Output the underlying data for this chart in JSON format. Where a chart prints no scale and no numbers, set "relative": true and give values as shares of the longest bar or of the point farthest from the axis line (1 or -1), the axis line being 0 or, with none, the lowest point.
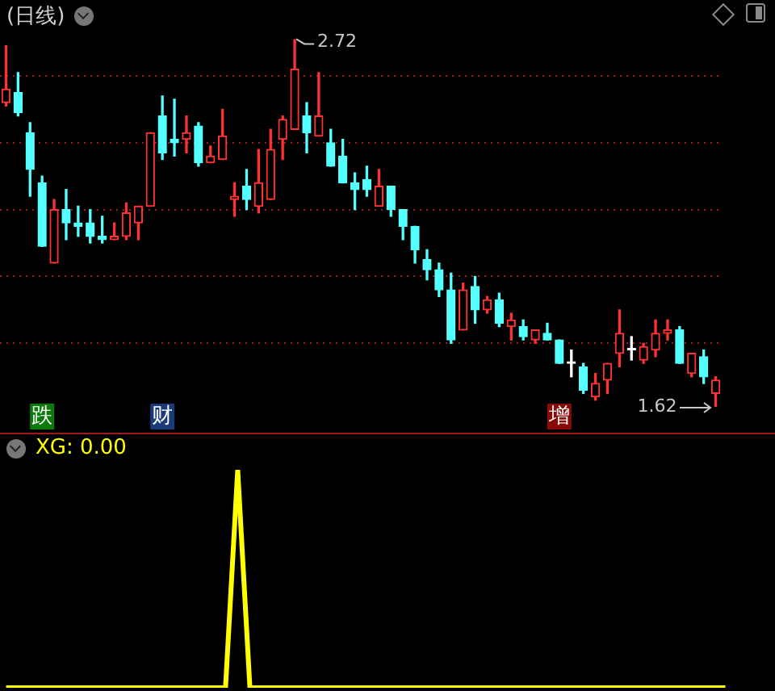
{
  "chart_data": [
    {
      "type": "candlestick",
      "title": "(日线)",
      "categories": [
        null,
        null,
        null,
        null,
        null,
        null,
        null,
        null,
        null,
        null,
        null,
        null,
        null,
        null,
        null,
        null,
        null,
        null,
        null,
        null,
        null,
        null,
        null,
        null,
        null,
        null,
        null,
        null,
        null,
        null,
        null,
        null,
        null,
        null,
        null,
        null,
        null,
        null,
        null,
        null,
        null,
        null,
        null,
        null,
        null,
        null,
        null,
        null,
        null,
        null,
        null,
        null,
        null,
        null,
        null,
        null,
        null,
        null,
        null,
        null
      ],
      "ohlc": [
        [
          2.53,
          2.7,
          2.52,
          2.57
        ],
        [
          2.56,
          2.62,
          2.49,
          2.5
        ],
        [
          2.44,
          2.47,
          2.25,
          2.33
        ],
        [
          2.29,
          2.31,
          2.1,
          2.1
        ],
        [
          2.05,
          2.24,
          2.05,
          2.21
        ],
        [
          2.21,
          2.27,
          2.12,
          2.17
        ],
        [
          2.17,
          2.22,
          2.13,
          2.16
        ],
        [
          2.17,
          2.21,
          2.11,
          2.13
        ],
        [
          2.13,
          2.19,
          2.11,
          2.12
        ],
        [
          2.12,
          2.17,
          2.12,
          2.13
        ],
        [
          2.13,
          2.23,
          2.12,
          2.2
        ],
        [
          2.17,
          2.22,
          2.12,
          2.22
        ],
        [
          2.22,
          2.44,
          2.22,
          2.44
        ],
        [
          2.49,
          2.55,
          2.36,
          2.38
        ],
        [
          2.42,
          2.54,
          2.37,
          2.41
        ],
        [
          2.42,
          2.49,
          2.38,
          2.44
        ],
        [
          2.46,
          2.47,
          2.34,
          2.35
        ],
        [
          2.35,
          2.4,
          2.35,
          2.37
        ],
        [
          2.36,
          2.51,
          2.36,
          2.43
        ],
        [
          2.24,
          2.29,
          2.19,
          2.25
        ],
        [
          2.28,
          2.33,
          2.21,
          2.24
        ],
        [
          2.22,
          2.39,
          2.2,
          2.29
        ],
        [
          2.24,
          2.45,
          2.24,
          2.39
        ],
        [
          2.42,
          2.49,
          2.36,
          2.48
        ],
        [
          2.45,
          2.72,
          2.45,
          2.63
        ],
        [
          2.49,
          2.53,
          2.38,
          2.44
        ],
        [
          2.43,
          2.62,
          2.43,
          2.49
        ],
        [
          2.41,
          2.45,
          2.34,
          2.34
        ],
        [
          2.37,
          2.42,
          2.29,
          2.29
        ],
        [
          2.29,
          2.32,
          2.21,
          2.27
        ],
        [
          2.3,
          2.34,
          2.25,
          2.27
        ],
        [
          2.22,
          2.33,
          2.22,
          2.28
        ],
        [
          2.28,
          2.28,
          2.19,
          2.21
        ],
        [
          2.21,
          2.21,
          2.12,
          2.16
        ],
        [
          2.16,
          2.16,
          2.05,
          2.09
        ],
        [
          2.06,
          2.09,
          2.0,
          2.03
        ],
        [
          2.03,
          2.05,
          1.95,
          1.97
        ],
        [
          1.97,
          2.02,
          1.81,
          1.82
        ],
        [
          1.85,
          1.99,
          1.85,
          1.97
        ],
        [
          1.98,
          2.01,
          1.87,
          1.91
        ],
        [
          1.91,
          1.95,
          1.9,
          1.94
        ],
        [
          1.94,
          1.96,
          1.86,
          1.87
        ],
        [
          1.86,
          1.9,
          1.82,
          1.88
        ],
        [
          1.86,
          1.88,
          1.82,
          1.83
        ],
        [
          1.82,
          1.85,
          1.81,
          1.85
        ],
        [
          1.84,
          1.87,
          1.82,
          1.82
        ],
        [
          1.82,
          1.82,
          1.75,
          1.75
        ],
        [
          1.75,
          1.79,
          1.71,
          1.75
        ],
        [
          1.74,
          1.75,
          1.66,
          1.67
        ],
        [
          1.65,
          1.72,
          1.64,
          1.69
        ],
        [
          1.7,
          1.75,
          1.66,
          1.75
        ],
        [
          1.78,
          1.91,
          1.74,
          1.84
        ],
        [
          1.79,
          1.83,
          1.76,
          1.79
        ],
        [
          1.76,
          1.81,
          1.75,
          1.8
        ],
        [
          1.79,
          1.88,
          1.77,
          1.84
        ],
        [
          1.84,
          1.88,
          1.82,
          1.85
        ],
        [
          1.85,
          1.86,
          1.75,
          1.75
        ],
        [
          1.72,
          1.78,
          1.71,
          1.78
        ],
        [
          1.77,
          1.79,
          1.69,
          1.71
        ],
        [
          1.66,
          1.71,
          1.62,
          1.7
        ]
      ],
      "colors": [
        "#ff3232",
        "#54ffff",
        "#54ffff",
        "#54ffff",
        "#ff3232",
        "#54ffff",
        "#54ffff",
        "#54ffff",
        "#54ffff",
        "#ff3232",
        "#ff3232",
        "#ff3232",
        "#ff3232",
        "#54ffff",
        "#54ffff",
        "#ff3232",
        "#54ffff",
        "#ff3232",
        "#ff3232",
        "#ff3232",
        "#54ffff",
        "#ff3232",
        "#ff3232",
        "#ff3232",
        "#ff3232",
        "#54ffff",
        "#ff3232",
        "#54ffff",
        "#54ffff",
        "#54ffff",
        "#54ffff",
        "#ff3232",
        "#54ffff",
        "#54ffff",
        "#54ffff",
        "#54ffff",
        "#54ffff",
        "#54ffff",
        "#ff3232",
        "#54ffff",
        "#ff3232",
        "#54ffff",
        "#ff3232",
        "#54ffff",
        "#ff3232",
        "#54ffff",
        "#54ffff",
        "#ffffff",
        "#54ffff",
        "#ff3232",
        "#ff3232",
        "#ff3232",
        "#ffffff",
        "#ff3232",
        "#ff3232",
        "#ff3232",
        "#54ffff",
        "#ff3232",
        "#54ffff",
        "#ff3232"
      ],
      "yticks": [
        {
          "value": 2.61,
          "label": null
        },
        {
          "value": 2.41,
          "label": null
        },
        {
          "value": 2.21,
          "label": null
        },
        {
          "value": 2.01,
          "label": null
        },
        {
          "value": 1.81,
          "label": null
        }
      ],
      "grid": "y",
      "annotations": [
        "2.72",
        "1.62",
        "跌",
        "财",
        "增"
      ]
    },
    {
      "type": "line",
      "title": "XG: 0.00",
      "categories": [
        null,
        null,
        null,
        null,
        null,
        null,
        null,
        null,
        null,
        null,
        null,
        null,
        null,
        null,
        null,
        null,
        null,
        null,
        null,
        null,
        null,
        null,
        null,
        null,
        null,
        null,
        null,
        null,
        null,
        null,
        null,
        null,
        null,
        null,
        null,
        null,
        null,
        null,
        null,
        null,
        null,
        null,
        null,
        null,
        null,
        null,
        null,
        null,
        null,
        null,
        null,
        null,
        null,
        null,
        null,
        null,
        null,
        null,
        null,
        null
      ],
      "relative": true,
      "series": [
        {
          "color": "#ffff00",
          "values": [
            0,
            0,
            0,
            0,
            0,
            0,
            0,
            0,
            0,
            0,
            0,
            0,
            0,
            0,
            0,
            0,
            0,
            0,
            0,
            1,
            0,
            0,
            0,
            0,
            0,
            0,
            0,
            0,
            0,
            0,
            0,
            0,
            0,
            0,
            0,
            0,
            0,
            0,
            0,
            0,
            0,
            0,
            0,
            0,
            0,
            0,
            0,
            0,
            0,
            0,
            0,
            0,
            0,
            0,
            0,
            0,
            0,
            0,
            0,
            0
          ]
        }
      ]
    }
  ]
}
